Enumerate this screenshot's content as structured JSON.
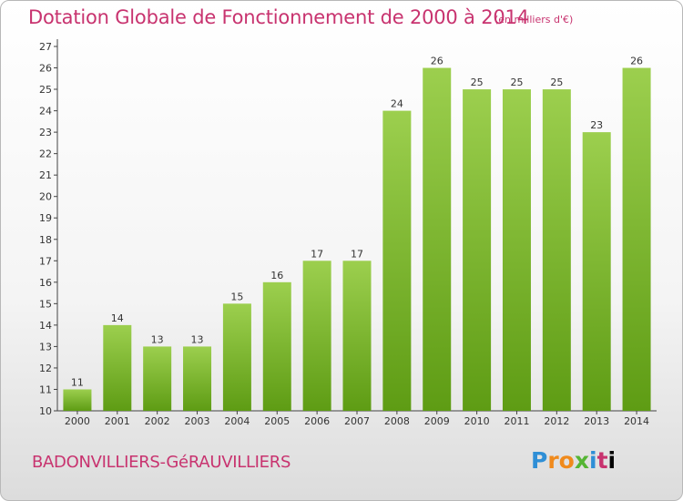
{
  "header": {
    "title": "Dotation Globale de Fonctionnement de 2000 à 2014",
    "unit": "(en milliers d'€)"
  },
  "footer": {
    "commune": "BADONVILLIERS-GéRAUVILLIERS",
    "logo_letters": [
      "P",
      "r",
      "o",
      "x",
      "i",
      "t",
      "i"
    ]
  },
  "chart_data": {
    "type": "bar",
    "title": "Dotation Globale de Fonctionnement de 2000 à 2014",
    "subtitle": "(en milliers d'€)",
    "categories": [
      "2000",
      "2001",
      "2002",
      "2003",
      "2004",
      "2005",
      "2006",
      "2007",
      "2008",
      "2009",
      "2010",
      "2011",
      "2012",
      "2013",
      "2014"
    ],
    "values": [
      11,
      14,
      13,
      13,
      15,
      16,
      17,
      17,
      24,
      26,
      25,
      25,
      25,
      23,
      26
    ],
    "ylim": [
      10,
      27
    ],
    "yticks": [
      10,
      11,
      12,
      13,
      14,
      15,
      16,
      17,
      18,
      19,
      20,
      21,
      22,
      23,
      24,
      25,
      26,
      27
    ],
    "grid": false,
    "bar_color_top": "#9ccf4e",
    "bar_color_bottom": "#5e9c14"
  }
}
